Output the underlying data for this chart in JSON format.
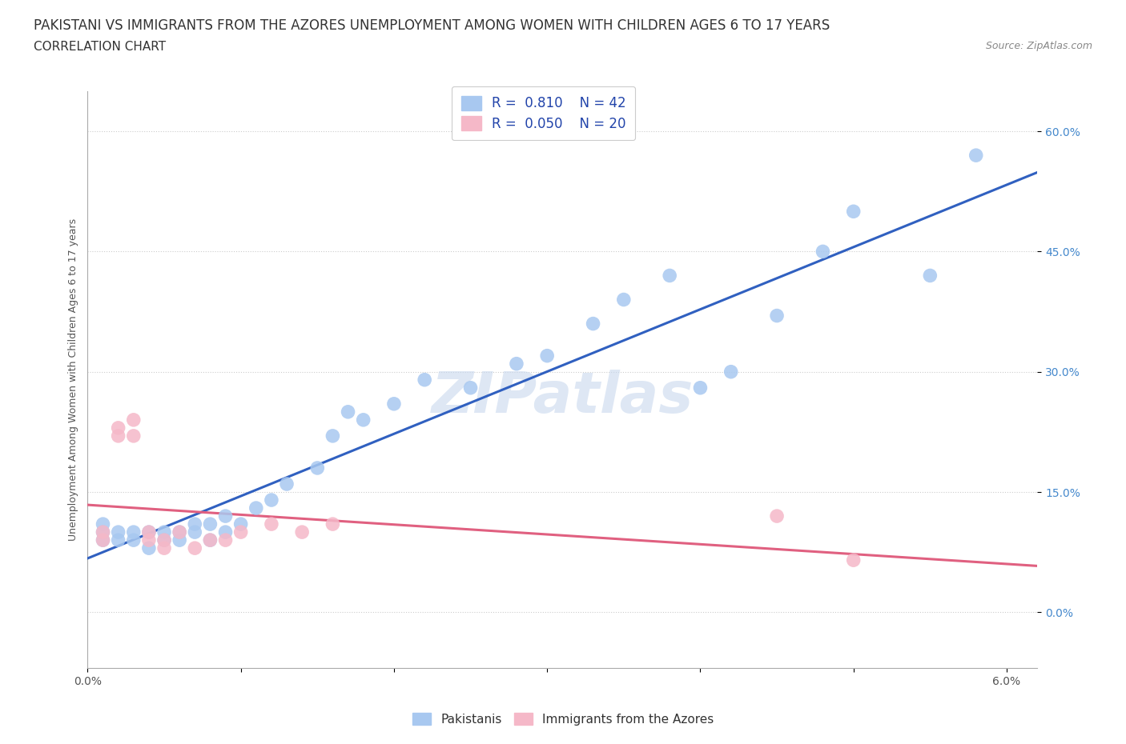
{
  "title": "PAKISTANI VS IMMIGRANTS FROM THE AZORES UNEMPLOYMENT AMONG WOMEN WITH CHILDREN AGES 6 TO 17 YEARS",
  "subtitle": "CORRELATION CHART",
  "source": "Source: ZipAtlas.com",
  "ylabel": "Unemployment Among Women with Children Ages 6 to 17 years",
  "ytick_labels": [
    "0.0%",
    "15.0%",
    "30.0%",
    "45.0%",
    "60.0%"
  ],
  "xtick_labels": [
    "0.0%",
    "",
    "",
    "",
    "",
    "",
    "6.0%"
  ],
  "watermark": "ZIPatlas",
  "pakistani_R": 0.81,
  "pakistani_N": 42,
  "azores_R": 0.05,
  "azores_N": 20,
  "pakistani_color": "#a8c8f0",
  "azores_color": "#f5b8c8",
  "pakistani_line_color": "#3060c0",
  "azores_line_color": "#e06080",
  "legend_R_color": "#2244aa",
  "pakistani_x": [
    0.001,
    0.001,
    0.001,
    0.002,
    0.002,
    0.003,
    0.003,
    0.004,
    0.004,
    0.005,
    0.005,
    0.006,
    0.006,
    0.007,
    0.007,
    0.008,
    0.008,
    0.009,
    0.009,
    0.01,
    0.011,
    0.012,
    0.013,
    0.015,
    0.016,
    0.017,
    0.018,
    0.02,
    0.022,
    0.025,
    0.028,
    0.03,
    0.033,
    0.035,
    0.038,
    0.04,
    0.042,
    0.045,
    0.048,
    0.05,
    0.055,
    0.058
  ],
  "pakistani_y": [
    0.09,
    0.1,
    0.11,
    0.09,
    0.1,
    0.09,
    0.1,
    0.1,
    0.08,
    0.09,
    0.1,
    0.09,
    0.1,
    0.1,
    0.11,
    0.09,
    0.11,
    0.1,
    0.12,
    0.11,
    0.13,
    0.14,
    0.16,
    0.18,
    0.22,
    0.25,
    0.24,
    0.26,
    0.29,
    0.28,
    0.31,
    0.32,
    0.36,
    0.39,
    0.42,
    0.28,
    0.3,
    0.37,
    0.45,
    0.5,
    0.42,
    0.57
  ],
  "azores_x": [
    0.001,
    0.001,
    0.002,
    0.002,
    0.003,
    0.003,
    0.004,
    0.004,
    0.005,
    0.005,
    0.006,
    0.007,
    0.008,
    0.009,
    0.01,
    0.012,
    0.014,
    0.016,
    0.045,
    0.05
  ],
  "azores_y": [
    0.09,
    0.1,
    0.22,
    0.23,
    0.22,
    0.24,
    0.09,
    0.1,
    0.08,
    0.09,
    0.1,
    0.08,
    0.09,
    0.09,
    0.1,
    0.11,
    0.1,
    0.11,
    0.12,
    0.065
  ],
  "xlim": [
    0.0,
    0.062
  ],
  "ylim": [
    -0.07,
    0.65
  ],
  "ytick_vals": [
    0.0,
    0.15,
    0.3,
    0.45,
    0.6
  ],
  "xtick_vals": [
    0.0,
    0.01,
    0.02,
    0.03,
    0.04,
    0.05,
    0.06
  ],
  "grid_color": "#cccccc",
  "background_color": "#ffffff",
  "title_fontsize": 12,
  "subtitle_fontsize": 11,
  "axis_label_fontsize": 9,
  "tick_label_fontsize": 10,
  "legend_fontsize": 12,
  "watermark_fontsize": 52,
  "watermark_color": "#c8d8ee",
  "watermark_alpha": 0.6
}
